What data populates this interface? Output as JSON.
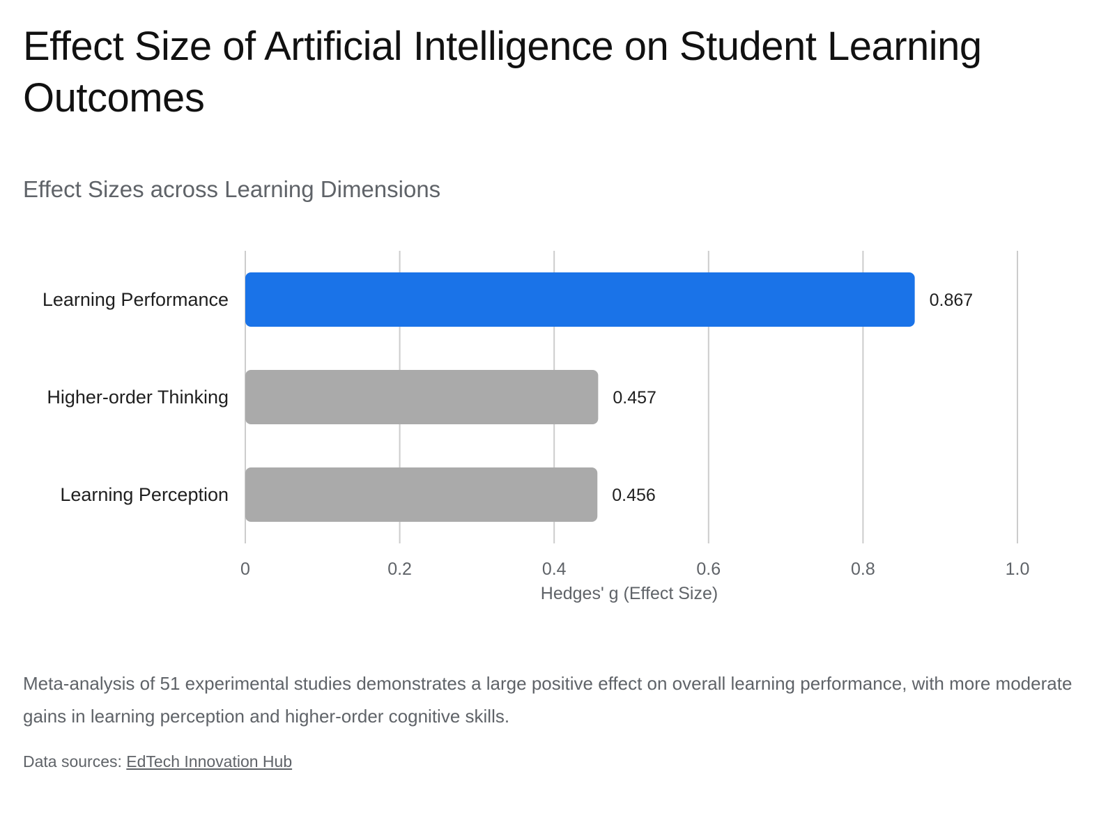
{
  "chart_data": {
    "type": "bar",
    "orientation": "horizontal",
    "title": "Effect Size of Artificial Intelligence on Student Learning Outcomes",
    "subtitle": "Effect Sizes across Learning Dimensions",
    "xlabel": "Hedges' g (Effect Size)",
    "ylabel": "",
    "xlim": [
      0,
      1.0
    ],
    "grid": true,
    "legend": "none",
    "categories": [
      "Learning Performance",
      "Higher-order Thinking",
      "Learning Perception"
    ],
    "values": [
      0.867,
      0.457,
      0.456
    ],
    "value_labels": [
      "0.867",
      "0.457",
      "0.456"
    ],
    "bar_colors": [
      "#1a73e8",
      "#aaaaaa",
      "#aaaaaa"
    ],
    "ticks": [
      0,
      0.2,
      0.4,
      0.6,
      0.8,
      1.0
    ],
    "tick_labels": [
      "0",
      "0.2",
      "0.4",
      "0.6",
      "0.8",
      "1.0"
    ]
  },
  "description": "Meta-analysis of 51 experimental studies demonstrates a large positive effect on overall learning performance, with more moderate gains in learning perception and higher-order cognitive skills.",
  "sources": {
    "prefix": "Data sources: ",
    "link_text": "EdTech Innovation Hub"
  },
  "colors": {
    "highlight": "#1a73e8",
    "default_bar": "#aaaaaa",
    "gridline": "#cccccc",
    "axis_text": "#5f6368"
  }
}
